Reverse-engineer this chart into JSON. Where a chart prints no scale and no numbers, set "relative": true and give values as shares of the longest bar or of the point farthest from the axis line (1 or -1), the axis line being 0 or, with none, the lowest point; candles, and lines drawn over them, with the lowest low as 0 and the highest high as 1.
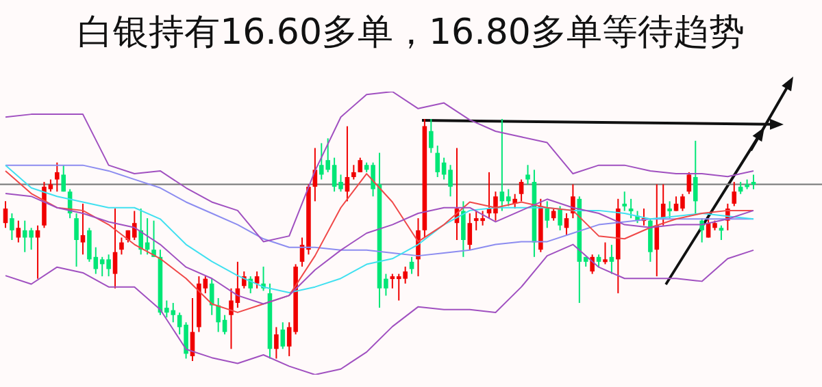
{
  "chart_data": [
    {
      "type": "candlestick",
      "title": "白银持有16.60多单，16.80多单等待趋势",
      "relative": true,
      "tick_labels": false,
      "grid": false,
      "legend": false,
      "categories": [
        null,
        null,
        null,
        null,
        null,
        null,
        null,
        null,
        null,
        null,
        null,
        null,
        null,
        null,
        null,
        null,
        null,
        null,
        null,
        null,
        null,
        null,
        null,
        null,
        null,
        null,
        null,
        null,
        null,
        null,
        null,
        null,
        null,
        null,
        null,
        null,
        null,
        null,
        null,
        null,
        null,
        null,
        null,
        null,
        null,
        null,
        null,
        null,
        null,
        null,
        null,
        null,
        null,
        null,
        null,
        null,
        null,
        null,
        null,
        null,
        null,
        null,
        null,
        null,
        null,
        null,
        null,
        null,
        null,
        null,
        null,
        null,
        null,
        null,
        null,
        null,
        null,
        null,
        null,
        null,
        null,
        null,
        null,
        null,
        null,
        null,
        null,
        null,
        null,
        null,
        null,
        null,
        null,
        null,
        null,
        null,
        null,
        null,
        null,
        null,
        null,
        null,
        null,
        null,
        null,
        null,
        null,
        null,
        null,
        null,
        null,
        null,
        null,
        null,
        null,
        null,
        null
      ],
      "ohlc": [
        [
          0.57,
          0.66,
          0.55,
          0.63
        ],
        [
          0.59,
          0.61,
          0.5,
          0.54
        ],
        [
          0.51,
          0.58,
          0.49,
          0.55
        ],
        [
          0.54,
          0.58,
          0.45,
          0.51
        ],
        [
          0.54,
          0.55,
          0.46,
          0.51
        ],
        [
          0.51,
          0.56,
          0.34,
          0.54
        ],
        [
          0.56,
          0.74,
          0.55,
          0.72
        ],
        [
          0.71,
          0.75,
          0.7,
          0.73
        ],
        [
          0.75,
          0.82,
          0.7,
          0.78
        ],
        [
          0.77,
          0.81,
          0.7,
          0.7
        ],
        [
          0.7,
          0.71,
          0.59,
          0.61
        ],
        [
          0.59,
          0.61,
          0.39,
          0.5
        ],
        [
          0.49,
          0.65,
          0.44,
          0.52
        ],
        [
          0.54,
          0.55,
          0.41,
          0.42
        ],
        [
          0.43,
          0.47,
          0.36,
          0.38
        ],
        [
          0.42,
          0.43,
          0.35,
          0.4
        ],
        [
          0.42,
          0.44,
          0.35,
          0.38
        ],
        [
          0.36,
          0.63,
          0.3,
          0.45
        ],
        [
          0.46,
          0.51,
          0.44,
          0.49
        ],
        [
          0.5,
          0.54,
          0.49,
          0.54
        ],
        [
          0.51,
          0.62,
          0.5,
          0.57
        ],
        [
          0.54,
          0.63,
          0.44,
          0.46
        ],
        [
          0.49,
          0.59,
          0.44,
          0.46
        ],
        [
          0.46,
          0.58,
          0.43,
          0.43
        ],
        [
          0.43,
          0.46,
          0.19,
          0.2
        ],
        [
          0.22,
          0.25,
          0.18,
          0.2
        ],
        [
          0.21,
          0.24,
          0.16,
          0.19
        ],
        [
          0.19,
          0.2,
          0.11,
          0.14
        ],
        [
          0.15,
          0.16,
          0.01,
          0.03
        ],
        [
          0.02,
          0.26,
          0,
          0.12
        ],
        [
          0.14,
          0.35,
          0.12,
          0.32
        ],
        [
          0.3,
          0.35,
          0.28,
          0.34
        ],
        [
          0.32,
          0.34,
          0.19,
          0.23
        ],
        [
          0.23,
          0.26,
          0.12,
          0.16
        ],
        [
          0.17,
          0.19,
          0.11,
          0.12
        ],
        [
          0.19,
          0.3,
          0.05,
          0.25
        ],
        [
          0.24,
          0.41,
          0.22,
          0.3
        ],
        [
          0.31,
          0.37,
          0.3,
          0.35
        ],
        [
          0.34,
          0.35,
          0.28,
          0.3
        ],
        [
          0.32,
          0.37,
          0.3,
          0.35
        ],
        [
          0.32,
          0.39,
          0.29,
          0.3
        ],
        [
          0.28,
          0.32,
          0.01,
          0.05
        ],
        [
          0.05,
          0.14,
          0.01,
          0.11
        ],
        [
          0.13,
          0.16,
          0.05,
          0.06
        ],
        [
          0.06,
          0.16,
          0.02,
          0.14
        ],
        [
          0.12,
          0.4,
          0.11,
          0.39
        ],
        [
          0.41,
          0.51,
          0.39,
          0.48
        ],
        [
          0.46,
          0.73,
          0.44,
          0.72
        ],
        [
          0.72,
          0.88,
          0.66,
          0.79
        ],
        [
          0.81,
          0.9,
          0.75,
          0.77
        ],
        [
          0.83,
          0.92,
          0.78,
          0.79
        ],
        [
          0.81,
          0.84,
          0.7,
          0.72
        ],
        [
          0.74,
          0.77,
          0.7,
          0.71
        ],
        [
          0.7,
          0.97,
          0.66,
          0.76
        ],
        [
          0.76,
          0.81,
          0.75,
          0.78
        ],
        [
          0.78,
          0.84,
          0.78,
          0.83
        ],
        [
          0.81,
          0.82,
          0.78,
          0.79
        ],
        [
          0.81,
          0.82,
          0.68,
          0.71
        ],
        [
          0.73,
          0.86,
          0.22,
          0.3
        ],
        [
          0.34,
          0.36,
          0.27,
          0.3
        ],
        [
          0.34,
          0.36,
          0.3,
          0.35
        ],
        [
          0.34,
          0.36,
          0.25,
          0.35
        ],
        [
          0.34,
          0.39,
          0.32,
          0.37
        ],
        [
          0.41,
          0.43,
          0.36,
          0.38
        ],
        [
          0.42,
          0.59,
          0.35,
          0.54
        ],
        [
          0.54,
          1,
          0.51,
          0.97
        ],
        [
          0.95,
          1,
          0.86,
          0.88
        ],
        [
          0.86,
          0.89,
          0.76,
          0.78
        ],
        [
          0.82,
          0.84,
          0.75,
          0.77
        ],
        [
          0.79,
          0.81,
          0.68,
          0.72
        ],
        [
          0.57,
          0.88,
          0.5,
          0.63
        ],
        [
          0.62,
          0.66,
          0.43,
          0.5
        ],
        [
          0.48,
          0.61,
          0.46,
          0.57
        ],
        [
          0.58,
          0.62,
          0.54,
          0.59
        ],
        [
          0.58,
          0.62,
          0.56,
          0.59
        ],
        [
          0.61,
          0.78,
          0.59,
          0.63
        ],
        [
          0.61,
          0.7,
          0.58,
          0.68
        ],
        [
          0.7,
          1,
          0.62,
          0.66
        ],
        [
          0.68,
          0.71,
          0.64,
          0.66
        ],
        [
          0.65,
          0.69,
          0.63,
          0.67
        ],
        [
          0.69,
          0.75,
          0.66,
          0.74
        ],
        [
          0.77,
          0.81,
          0.73,
          0.75
        ],
        [
          0.74,
          0.79,
          0.43,
          0.49
        ],
        [
          0.46,
          0.67,
          0.45,
          0.64
        ],
        [
          0.63,
          0.66,
          0.55,
          0.58
        ],
        [
          0.59,
          0.63,
          0.58,
          0.62
        ],
        [
          0.63,
          0.64,
          0.54,
          0.56
        ],
        [
          0.55,
          0.61,
          0.52,
          0.59
        ],
        [
          0.61,
          0.73,
          0.59,
          0.68
        ],
        [
          0.67,
          0.68,
          0.24,
          0.41
        ],
        [
          0.43,
          0.43,
          0.39,
          0.41
        ],
        [
          0.37,
          0.44,
          0.36,
          0.43
        ],
        [
          0.43,
          0.44,
          0.39,
          0.41
        ],
        [
          0.41,
          0.49,
          0.4,
          0.42
        ],
        [
          0.43,
          0.48,
          0.36,
          0.41
        ],
        [
          0.42,
          0.67,
          0.28,
          0.63
        ],
        [
          0.65,
          0.7,
          0.62,
          0.64
        ],
        [
          0.63,
          0.67,
          0.59,
          0.62
        ],
        [
          0.6,
          0.62,
          0.57,
          0.58
        ],
        [
          0.58,
          0.63,
          0.56,
          0.59
        ],
        [
          0.58,
          0.59,
          0.41,
          0.45
        ],
        [
          0.46,
          0.73,
          0.35,
          0.56
        ],
        [
          0.59,
          0.73,
          0.56,
          0.65
        ],
        [
          0.63,
          0.66,
          0.59,
          0.62
        ],
        [
          0.62,
          0.68,
          0.62,
          0.65
        ],
        [
          0.63,
          0.69,
          0.62,
          0.68
        ],
        [
          0.7,
          0.78,
          0.69,
          0.77
        ],
        [
          0.76,
          0.91,
          0.61,
          0.66
        ],
        [
          0.58,
          0.59,
          0.49,
          0.54
        ],
        [
          0.51,
          0.59,
          0.51,
          0.57
        ],
        [
          0.55,
          0.58,
          0.54,
          0.57
        ],
        [
          0.55,
          0.56,
          0.5,
          0.54
        ],
        [
          0.58,
          0.65,
          0.54,
          0.63
        ],
        [
          0.65,
          0.74,
          0.64,
          0.7
        ],
        [
          0.72,
          0.74,
          0.69,
          0.7
        ],
        [
          0.73,
          0.75,
          0.71,
          0.72
        ],
        [
          0.74,
          0.77,
          0.71,
          0.73
        ]
      ],
      "ref_lines": [
        {
          "axis": "y",
          "value": 0.73,
          "color": "#808080"
        }
      ]
    },
    {
      "type": "line",
      "relative": true,
      "tick_labels": false,
      "grid": false,
      "legend": false,
      "categories": [
        null,
        null,
        null,
        null,
        null,
        null,
        null,
        null,
        null,
        null,
        null,
        null,
        null,
        null,
        null,
        null,
        null,
        null,
        null,
        null,
        null,
        null,
        null,
        null,
        null,
        null,
        null,
        null,
        null,
        null
      ],
      "series": [
        {
          "color": "#a050c0",
          "values": [
            0.91,
            0.92,
            0.92,
            0.92,
            0.74,
            0.71,
            0.72,
            0.66,
            0.61,
            0.58,
            0.47,
            0.49,
            0.72,
            0.91,
            0.99,
            1,
            0.94,
            0.96,
            0.9,
            0.86,
            0.84,
            0.82,
            0.71,
            0.74,
            0.74,
            0.72,
            0.71,
            0.71,
            0.7,
            0.72
          ]
        },
        {
          "color": "#a050c0",
          "values": [
            0.64,
            0.63,
            0.59,
            0.57,
            0.54,
            0.52,
            0.46,
            0.38,
            0.34,
            0.28,
            0.25,
            0.28,
            0.37,
            0.44,
            0.5,
            0.53,
            0.57,
            0.59,
            0.59,
            0.54,
            0.58,
            0.62,
            0.59,
            0.57,
            0.53,
            0.52,
            0.53,
            0.53,
            0.55,
            0.58
          ]
        },
        {
          "color": "#a050c0",
          "values": [
            0.35,
            0.32,
            0.38,
            0.36,
            0.31,
            0.31,
            0.23,
            0.09,
            0.06,
            0.04,
            0.07,
            0.03,
            0,
            0.02,
            0.08,
            0.17,
            0.24,
            0.23,
            0.23,
            0.22,
            0.31,
            0.42,
            0.46,
            0.38,
            0.34,
            0.34,
            0.34,
            0.33,
            0.41,
            0.44
          ]
        },
        {
          "color": "#f04848",
          "values": [
            0.72,
            0.64,
            0.59,
            0.58,
            0.53,
            0.46,
            0.41,
            0.34,
            0.25,
            0.22,
            0.25,
            0.28,
            0.42,
            0.59,
            0.71,
            0.61,
            0.47,
            0.53,
            0.61,
            0.59,
            0.61,
            0.59,
            0.58,
            0.49,
            0.48,
            0.52,
            0.55,
            0.57,
            0.58,
            0.58
          ]
        },
        {
          "color": "#40e0f0",
          "values": [
            0.74,
            0.66,
            0.63,
            0.61,
            0.59,
            0.59,
            0.55,
            0.46,
            0.4,
            0.35,
            0.31,
            0.29,
            0.31,
            0.34,
            0.39,
            0.41,
            0.46,
            0.53,
            0.58,
            0.59,
            0.59,
            0.59,
            0.58,
            0.58,
            0.57,
            0.55,
            0.56,
            0.57,
            0.56,
            0.55
          ]
        },
        {
          "color": "#8c8cf0",
          "values": [
            0.74,
            0.74,
            0.74,
            0.74,
            0.72,
            0.69,
            0.66,
            0.61,
            0.57,
            0.53,
            0.48,
            0.45,
            0.45,
            0.44,
            0.44,
            0.43,
            0.42,
            0.43,
            0.44,
            0.46,
            0.47,
            0.47,
            0.5,
            0.53,
            0.54,
            0.55,
            0.55,
            0.55,
            0.55,
            0.55
          ]
        }
      ]
    }
  ]
}
